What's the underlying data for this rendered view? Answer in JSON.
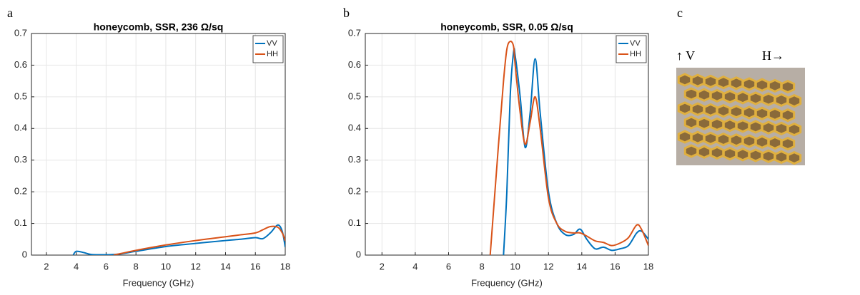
{
  "chart_data": [
    {
      "type": "line",
      "panel": "a",
      "title": "honeycomb, SSR, 236 Ω/sq",
      "x_label": "Frequency (GHz)",
      "x": [
        3.8,
        4,
        4.5,
        5,
        6,
        6.5,
        7,
        8,
        10,
        12,
        14,
        15,
        16,
        16.5,
        17,
        17.5,
        17.8,
        18
      ],
      "series": [
        {
          "name": "VV",
          "color": "#0072BD",
          "values": [
            0,
            0.012,
            0.008,
            0.002,
            0.001,
            0.002,
            0.004,
            0.012,
            0.027,
            0.037,
            0.046,
            0.05,
            0.055,
            0.052,
            0.07,
            0.095,
            0.075,
            0.025
          ]
        },
        {
          "name": "HH",
          "color": "#D95319",
          "values": [
            null,
            null,
            null,
            null,
            null,
            0,
            0.005,
            0.015,
            0.032,
            0.046,
            0.058,
            0.064,
            0.07,
            0.08,
            0.09,
            0.088,
            0.07,
            0.045
          ]
        }
      ],
      "xlim": [
        1,
        18
      ],
      "xticks": [
        2,
        4,
        6,
        8,
        10,
        12,
        14,
        16,
        18
      ],
      "ylim": [
        0,
        0.7
      ],
      "yticks": [
        0,
        0.1,
        0.2,
        0.3,
        0.4,
        0.5,
        0.6,
        0.7
      ],
      "grid": true,
      "legend": "upper right"
    },
    {
      "type": "line",
      "panel": "b",
      "title": "honeycomb, SSR, 0.05 Ω/sq",
      "x_label": "Frequency (GHz)",
      "x": [
        8.5,
        9,
        9.3,
        9.5,
        9.7,
        9.9,
        10,
        10.3,
        10.6,
        10.9,
        11.2,
        11.5,
        12,
        12.5,
        13,
        13.5,
        13.9,
        14.3,
        14.8,
        15.3,
        15.8,
        16.3,
        16.8,
        17.3,
        17.6,
        18
      ],
      "series": [
        {
          "name": "VV",
          "color": "#0072BD",
          "values": [
            null,
            null,
            0,
            0.2,
            0.5,
            0.64,
            0.63,
            0.5,
            0.34,
            0.45,
            0.62,
            0.45,
            0.2,
            0.1,
            0.065,
            0.065,
            0.082,
            0.05,
            0.02,
            0.025,
            0.015,
            0.02,
            0.03,
            0.07,
            0.075,
            0.05
          ]
        },
        {
          "name": "HH",
          "color": "#D95319",
          "values": [
            0,
            0.35,
            0.55,
            0.65,
            0.675,
            0.66,
            0.6,
            0.45,
            0.35,
            0.42,
            0.5,
            0.4,
            0.18,
            0.1,
            0.075,
            0.07,
            0.07,
            0.06,
            0.045,
            0.04,
            0.03,
            0.038,
            0.055,
            0.095,
            0.08,
            0.03
          ]
        }
      ],
      "xlim": [
        1,
        18
      ],
      "xticks": [
        2,
        4,
        6,
        8,
        10,
        12,
        14,
        16,
        18
      ],
      "ylim": [
        0,
        0.7
      ],
      "yticks": [
        0,
        0.1,
        0.2,
        0.3,
        0.4,
        0.5,
        0.6,
        0.7
      ],
      "grid": true,
      "legend": "upper right"
    }
  ],
  "photo": {
    "panel": "c",
    "labels": [
      "↑ V",
      "H→"
    ]
  }
}
